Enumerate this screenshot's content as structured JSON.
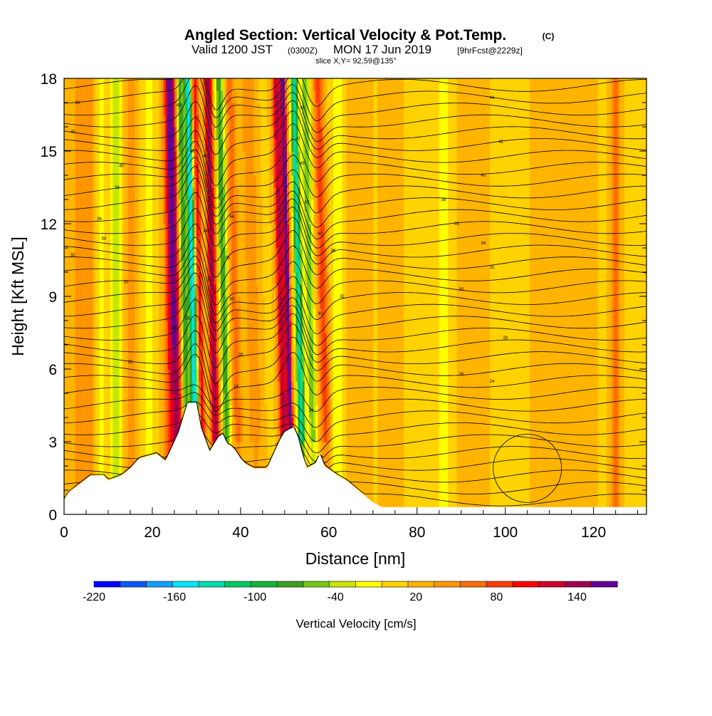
{
  "chart_data": {
    "type": "heatmap",
    "title_main": "Angled Section: Vertical Velocity & Pot.Temp.",
    "title_units": "(C)",
    "subtitle_valid": "Valid 1200 JST",
    "subtitle_utc": "(0300Z)",
    "subtitle_date": "MON 17 Jun 2019",
    "subtitle_fcst": "[9hrFcst@2229z]",
    "subtitle_slice": "slice X,Y= 92,59@135°",
    "xlabel": "Distance [nm]",
    "ylabel": "Height [Kft MSL]",
    "xlim": [
      0,
      132
    ],
    "ylim": [
      0,
      18
    ],
    "x_ticks": [
      "0",
      "20",
      "40",
      "60",
      "80",
      "100",
      "120"
    ],
    "y_ticks": [
      "0",
      "3",
      "6",
      "9",
      "12",
      "15",
      "18"
    ],
    "colorbar_label": "Vertical Velocity [cm/s]",
    "colorbar_ticks": [
      "-220",
      "-160",
      "-100",
      "-40",
      "20",
      "80",
      "140"
    ],
    "colorbar_range": [
      -220,
      170
    ],
    "colorbar_colors": [
      "#0000ff",
      "#0a5aff",
      "#10a0ff",
      "#00e6ff",
      "#00dcaa",
      "#00c864",
      "#12b43c",
      "#3ca01e",
      "#78c814",
      "#c8e600",
      "#ffff00",
      "#ffd200",
      "#ffb400",
      "#ff9600",
      "#ff6e00",
      "#ff3c00",
      "#ff0000",
      "#d2002d",
      "#a00050",
      "#640096"
    ],
    "terrain_profile_kft": [
      [
        0,
        0.6
      ],
      [
        1,
        0.9
      ],
      [
        6,
        1.6
      ],
      [
        9,
        1.6
      ],
      [
        10,
        1.4
      ],
      [
        13,
        1.6
      ],
      [
        15,
        1.9
      ],
      [
        17,
        2.3
      ],
      [
        21,
        2.5
      ],
      [
        23,
        2.2
      ],
      [
        24,
        2.6
      ],
      [
        25,
        3.0
      ],
      [
        26,
        3.4
      ],
      [
        27,
        4.0
      ],
      [
        28,
        4.6
      ],
      [
        30,
        4.6
      ],
      [
        31,
        3.6
      ],
      [
        32,
        3.1
      ],
      [
        33,
        2.6
      ],
      [
        34,
        2.9
      ],
      [
        35,
        3.2
      ],
      [
        36,
        3.3
      ],
      [
        37,
        2.9
      ],
      [
        38,
        2.8
      ],
      [
        39,
        2.6
      ],
      [
        40,
        2.3
      ],
      [
        41,
        2.1
      ],
      [
        43,
        1.9
      ],
      [
        46,
        1.9
      ],
      [
        47,
        2.3
      ],
      [
        48,
        2.7
      ],
      [
        49,
        3.1
      ],
      [
        50,
        3.4
      ],
      [
        52,
        3.6
      ],
      [
        53,
        3.2
      ],
      [
        54,
        2.5
      ],
      [
        55,
        1.9
      ],
      [
        57,
        2.1
      ],
      [
        58,
        2.5
      ],
      [
        59,
        2.0
      ],
      [
        62,
        1.6
      ],
      [
        64,
        1.4
      ],
      [
        66,
        1.1
      ],
      [
        68,
        0.8
      ],
      [
        70,
        0.5
      ],
      [
        72,
        0.3
      ],
      [
        132,
        0.3
      ]
    ],
    "velocity_features": [
      {
        "x": 3,
        "w": 2.0,
        "v": 30
      },
      {
        "x": 6,
        "w": 1.5,
        "v": 50
      },
      {
        "x": 8,
        "w": 1.5,
        "v": -30
      },
      {
        "x": 12,
        "w": 1.6,
        "v": -60
      },
      {
        "x": 15,
        "w": 1.6,
        "v": 40
      },
      {
        "x": 19,
        "w": 1.4,
        "v": -30
      },
      {
        "x": 24,
        "w": 1.5,
        "v": 80
      },
      {
        "x": 25.5,
        "w": 1.3,
        "v": 110
      },
      {
        "x": 27.5,
        "w": 1.0,
        "v": -100
      },
      {
        "x": 29.5,
        "w": 0.8,
        "v": -170
      },
      {
        "x": 31,
        "w": 0.8,
        "v": 90
      },
      {
        "x": 34,
        "w": 1.0,
        "v": 130
      },
      {
        "x": 36.5,
        "w": 1.0,
        "v": -90
      },
      {
        "x": 39,
        "w": 1.2,
        "v": 50
      },
      {
        "x": 43,
        "w": 1.5,
        "v": 40
      },
      {
        "x": 49.5,
        "w": 1.0,
        "v": 120
      },
      {
        "x": 51,
        "w": 0.6,
        "v": 150
      },
      {
        "x": 53.5,
        "w": 0.8,
        "v": -150
      },
      {
        "x": 56,
        "w": 1.0,
        "v": -70
      },
      {
        "x": 59,
        "w": 1.2,
        "v": 70
      },
      {
        "x": 62,
        "w": 1.5,
        "v": -40
      },
      {
        "x": 66,
        "w": 2.5,
        "v": 25
      },
      {
        "x": 74,
        "w": 2.0,
        "v": 20
      },
      {
        "x": 86,
        "w": 3.0,
        "v": -25
      },
      {
        "x": 92,
        "w": 3.0,
        "v": 25
      },
      {
        "x": 110,
        "w": 3.0,
        "v": 20
      },
      {
        "x": 118,
        "w": 2.0,
        "v": 25
      },
      {
        "x": 125,
        "w": 1.0,
        "v": 60
      }
    ],
    "isentrope_count": 36,
    "contour_labels": [
      {
        "x": 3,
        "y": 17.0,
        "t": "46"
      },
      {
        "x": 2,
        "y": 15.8,
        "t": "45"
      },
      {
        "x": 13,
        "y": 14.4,
        "t": "40"
      },
      {
        "x": 12,
        "y": 13.5,
        "t": "38"
      },
      {
        "x": 8,
        "y": 12.2,
        "t": "36"
      },
      {
        "x": 9,
        "y": 11.4,
        "t": "34"
      },
      {
        "x": 2,
        "y": 10.7,
        "t": "32"
      },
      {
        "x": 14,
        "y": 9.6,
        "t": "30"
      },
      {
        "x": 25,
        "y": 7.7,
        "t": "28"
      },
      {
        "x": 15,
        "y": 6.3,
        "t": "26"
      },
      {
        "x": 26,
        "y": 16.9,
        "t": "48"
      },
      {
        "x": 29,
        "y": 15.0,
        "t": "46"
      },
      {
        "x": 32,
        "y": 14.8,
        "t": "45"
      },
      {
        "x": 38,
        "y": 12.3,
        "t": "44"
      },
      {
        "x": 32,
        "y": 11.7,
        "t": "38"
      },
      {
        "x": 37,
        "y": 10.6,
        "t": "36"
      },
      {
        "x": 33,
        "y": 9.7,
        "t": "32"
      },
      {
        "x": 38,
        "y": 8.9,
        "t": "30"
      },
      {
        "x": 28,
        "y": 8.1,
        "t": "28"
      },
      {
        "x": 40,
        "y": 6.6,
        "t": "26"
      },
      {
        "x": 39,
        "y": 5.3,
        "t": "24"
      },
      {
        "x": 54,
        "y": 16.8,
        "t": "48"
      },
      {
        "x": 53,
        "y": 15.5,
        "t": "47"
      },
      {
        "x": 54,
        "y": 14.5,
        "t": "45"
      },
      {
        "x": 55,
        "y": 12.9,
        "t": "42"
      },
      {
        "x": 58,
        "y": 11.6,
        "t": "40"
      },
      {
        "x": 61,
        "y": 10.9,
        "t": "36"
      },
      {
        "x": 63,
        "y": 9.0,
        "t": "32"
      },
      {
        "x": 58,
        "y": 8.3,
        "t": "30"
      },
      {
        "x": 56,
        "y": 4.3,
        "t": "24"
      },
      {
        "x": 97,
        "y": 17.2,
        "t": "44"
      },
      {
        "x": 99,
        "y": 15.4,
        "t": "42"
      },
      {
        "x": 95,
        "y": 14.0,
        "t": "40"
      },
      {
        "x": 86,
        "y": 13.0,
        "t": "38"
      },
      {
        "x": 89,
        "y": 12.0,
        "t": "36"
      },
      {
        "x": 95,
        "y": 11.2,
        "t": "34"
      },
      {
        "x": 97,
        "y": 10.2,
        "t": "32"
      },
      {
        "x": 90,
        "y": 9.3,
        "t": "30"
      },
      {
        "x": 100,
        "y": 7.3,
        "t": "28"
      },
      {
        "x": 90,
        "y": 5.8,
        "t": "26"
      },
      {
        "x": 97,
        "y": 5.5,
        "t": "24"
      }
    ]
  }
}
